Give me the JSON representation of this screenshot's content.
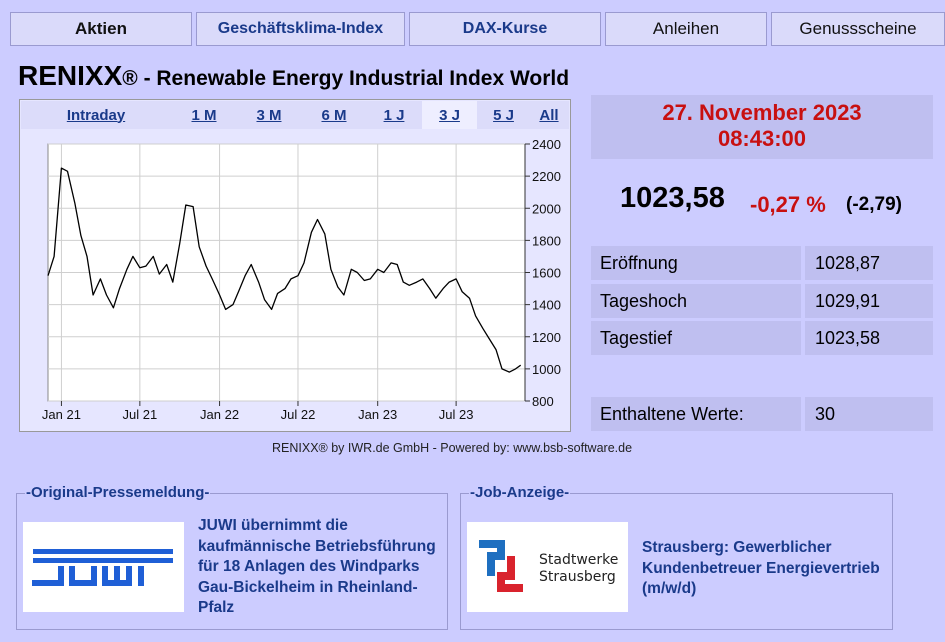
{
  "nav": {
    "tabs": [
      {
        "label": "Aktien"
      },
      {
        "label": "Geschäftsklima-Index"
      },
      {
        "label": "DAX-Kurse"
      },
      {
        "label": "Anleihen"
      },
      {
        "label": "Genussscheine"
      }
    ]
  },
  "header": {
    "name": "RENIXX",
    "reg": "®",
    "subtitle": " - Renewable Energy Industrial Index World"
  },
  "range_buttons": [
    {
      "label": "Intraday"
    },
    {
      "label": "1 M"
    },
    {
      "label": "3 M"
    },
    {
      "label": "6 M"
    },
    {
      "label": "1 J"
    },
    {
      "label": "3 J"
    },
    {
      "label": "5 J"
    },
    {
      "label": "All"
    }
  ],
  "selected_range": "3 J",
  "credits": "RENIXX® by IWR.de GmbH   -   Powered by: www.bsb-software.de",
  "quote": {
    "date": "27. November  2023",
    "time": "08:43:00",
    "price": "1023,58",
    "change_pct": "-0,27 %",
    "change_abs": "(-2,79)",
    "rows": [
      {
        "label": "Eröffnung",
        "value": "1028,87"
      },
      {
        "label": "Tageshoch",
        "value": "1029,91"
      },
      {
        "label": "Tagestief",
        "value": "1023,58"
      }
    ],
    "holdings_label": "Enthaltene Werte:",
    "holdings_value": "30"
  },
  "press": {
    "legend": "-Original-Pressemeldung-",
    "logo_text": "JUWI",
    "headline": "JUWI übernimmt die kaufmännische Betriebsführung für 18 Anlagen des Windparks Gau-Bickelheim in Rheinland-Pfalz"
  },
  "job": {
    "legend": "-Job-Anzeige-",
    "logo_line1": "Stadtwerke",
    "logo_line2": "Strausberg",
    "text": "Strausberg: Gewerblicher Kundenbetreuer Energievertrieb (m/w/d)"
  },
  "colors": {
    "background": "#ccccff",
    "accent_red": "#c81010",
    "link_blue": "#1a3a8a",
    "juwi_blue": "#1f5fd6",
    "sws_blue": "#1e6fc0",
    "sws_red": "#d9232d"
  },
  "chart_data": {
    "type": "line",
    "ylim": [
      800,
      2400
    ],
    "y_ticks": [
      "800",
      "1000",
      "1200",
      "1400",
      "1600",
      "1800",
      "2000",
      "2200",
      "2400"
    ],
    "x_ticks": [
      "Jan 21",
      "Jul 21",
      "Jan 22",
      "Jul 22",
      "Jan 23",
      "Jul 23"
    ],
    "grid": true,
    "x": [
      "2020-12-01",
      "2020-12-15",
      "2021-01-01",
      "2021-01-15",
      "2021-02-01",
      "2021-02-15",
      "2021-03-01",
      "2021-03-15",
      "2021-04-01",
      "2021-04-15",
      "2021-05-01",
      "2021-05-15",
      "2021-06-01",
      "2021-06-15",
      "2021-07-01",
      "2021-07-15",
      "2021-08-01",
      "2021-08-15",
      "2021-09-01",
      "2021-09-15",
      "2021-10-01",
      "2021-10-15",
      "2021-11-01",
      "2021-11-15",
      "2021-12-01",
      "2021-12-15",
      "2022-01-01",
      "2022-01-15",
      "2022-02-01",
      "2022-02-15",
      "2022-03-01",
      "2022-03-15",
      "2022-04-01",
      "2022-04-15",
      "2022-05-01",
      "2022-05-15",
      "2022-06-01",
      "2022-06-15",
      "2022-07-01",
      "2022-07-15",
      "2022-08-01",
      "2022-08-15",
      "2022-09-01",
      "2022-09-15",
      "2022-10-01",
      "2022-10-15",
      "2022-11-01",
      "2022-11-15",
      "2022-12-01",
      "2022-12-15",
      "2023-01-01",
      "2023-01-15",
      "2023-02-01",
      "2023-02-15",
      "2023-03-01",
      "2023-03-15",
      "2023-04-01",
      "2023-04-15",
      "2023-05-01",
      "2023-05-15",
      "2023-06-01",
      "2023-06-15",
      "2023-07-01",
      "2023-07-15",
      "2023-08-01",
      "2023-08-15",
      "2023-09-01",
      "2023-09-15",
      "2023-10-01",
      "2023-10-15",
      "2023-11-01",
      "2023-11-15",
      "2023-11-27"
    ],
    "series": [
      {
        "values": [
          1580,
          1700,
          2250,
          2230,
          2030,
          1830,
          1700,
          1460,
          1560,
          1460,
          1380,
          1500,
          1620,
          1700,
          1630,
          1640,
          1700,
          1590,
          1650,
          1540,
          1780,
          2020,
          2010,
          1760,
          1640,
          1560,
          1460,
          1370,
          1400,
          1490,
          1580,
          1650,
          1540,
          1430,
          1370,
          1470,
          1500,
          1560,
          1580,
          1660,
          1850,
          1930,
          1840,
          1620,
          1510,
          1460,
          1620,
          1600,
          1550,
          1560,
          1620,
          1600,
          1660,
          1650,
          1540,
          1520,
          1540,
          1560,
          1500,
          1440,
          1500,
          1540,
          1560,
          1480,
          1440,
          1330,
          1250,
          1190,
          1120,
          1000,
          980,
          1000,
          1023
        ]
      }
    ]
  }
}
